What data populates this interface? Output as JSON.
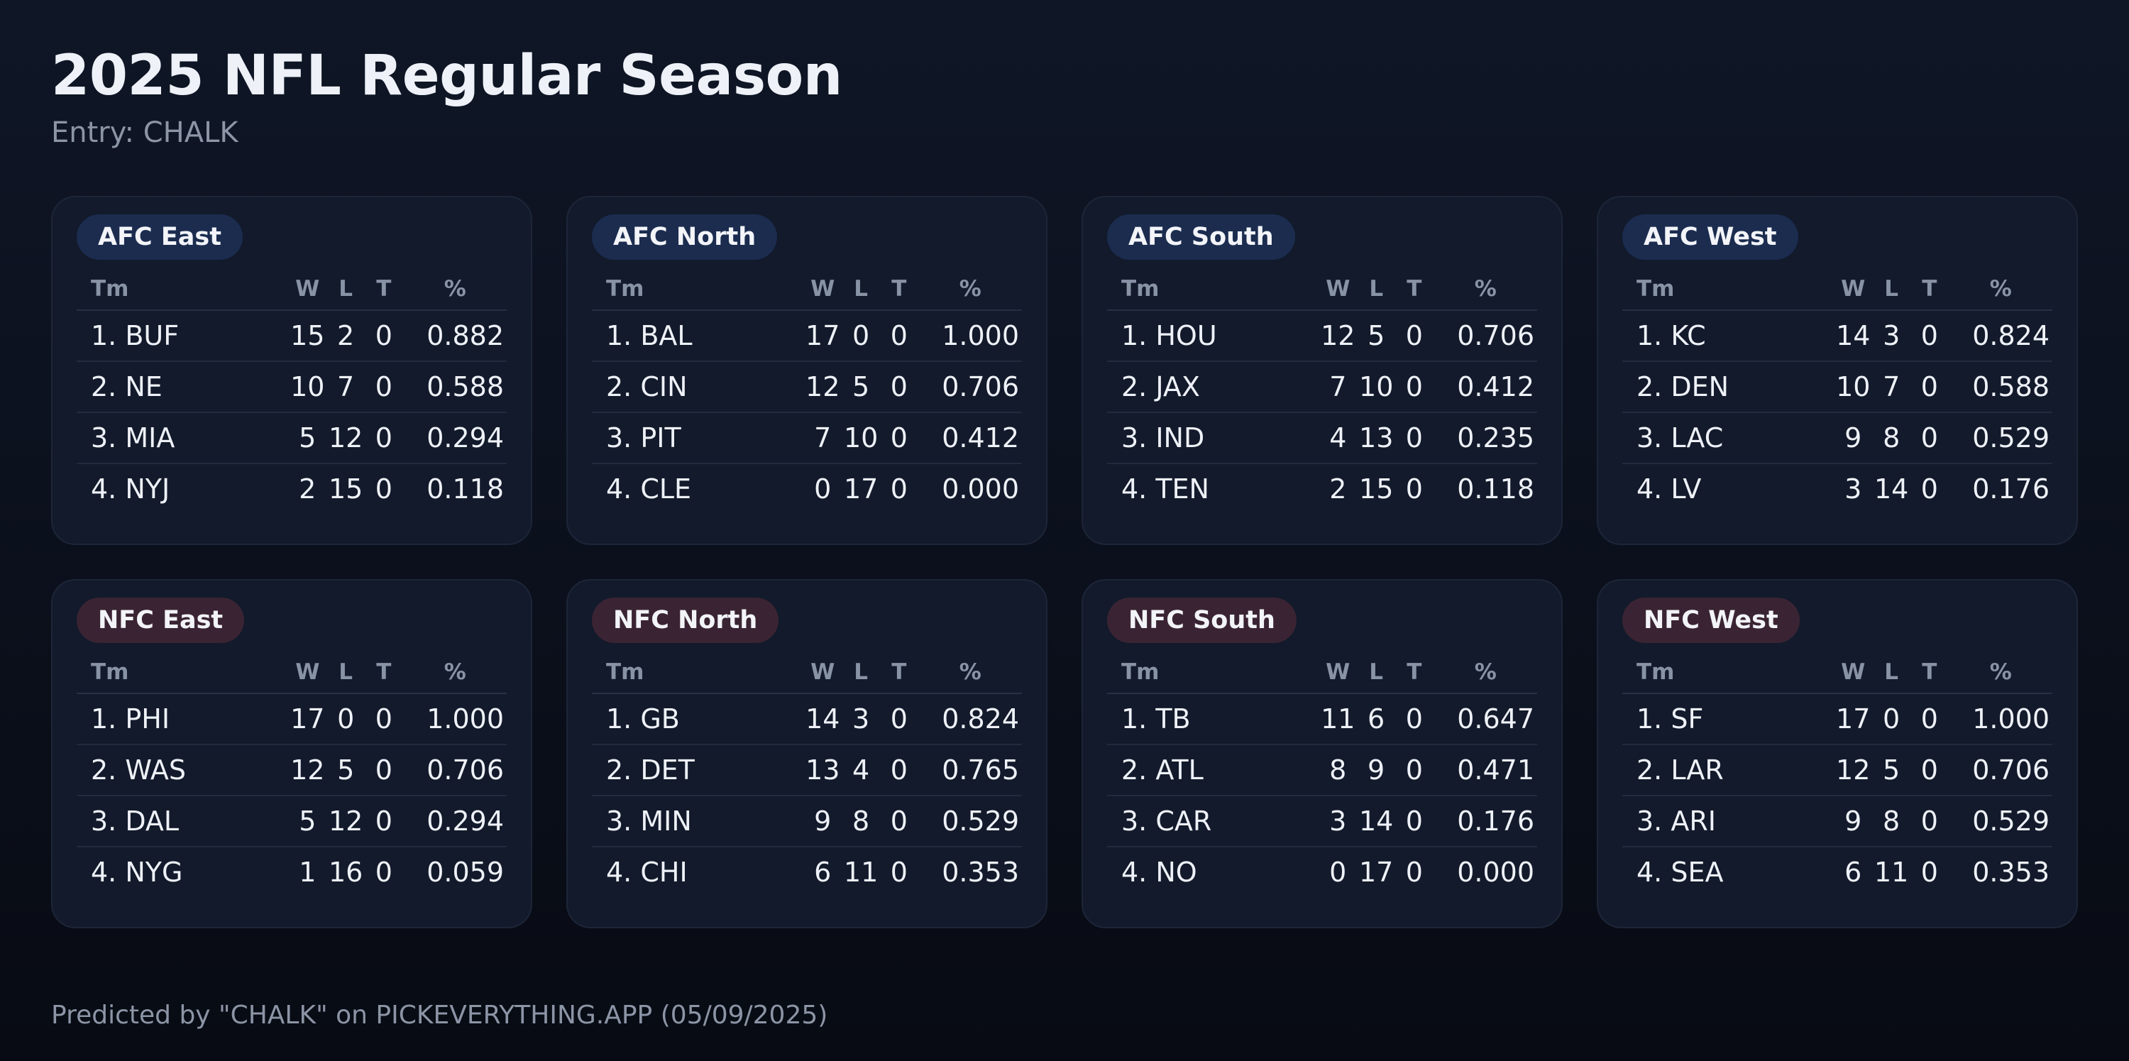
{
  "title": "2025 NFL Regular Season",
  "subtitle": "Entry: CHALK",
  "columns": {
    "team": "Tm",
    "w": "W",
    "l": "L",
    "t": "T",
    "pct": "%"
  },
  "colors": {
    "afc_pill": "#1b2c4f",
    "nfc_pill": "#3a2433",
    "card": "#121a2b",
    "background": "#0b101c"
  },
  "divisions": [
    {
      "name": "AFC East",
      "conference": "afc",
      "teams": [
        {
          "team": "1. BUF",
          "w": "15",
          "l": "2",
          "t": "0",
          "pct": "0.882"
        },
        {
          "team": "2. NE",
          "w": "10",
          "l": "7",
          "t": "0",
          "pct": "0.588"
        },
        {
          "team": "3. MIA",
          "w": "5",
          "l": "12",
          "t": "0",
          "pct": "0.294"
        },
        {
          "team": "4. NYJ",
          "w": "2",
          "l": "15",
          "t": "0",
          "pct": "0.118"
        }
      ]
    },
    {
      "name": "AFC North",
      "conference": "afc",
      "teams": [
        {
          "team": "1. BAL",
          "w": "17",
          "l": "0",
          "t": "0",
          "pct": "1.000"
        },
        {
          "team": "2. CIN",
          "w": "12",
          "l": "5",
          "t": "0",
          "pct": "0.706"
        },
        {
          "team": "3. PIT",
          "w": "7",
          "l": "10",
          "t": "0",
          "pct": "0.412"
        },
        {
          "team": "4. CLE",
          "w": "0",
          "l": "17",
          "t": "0",
          "pct": "0.000"
        }
      ]
    },
    {
      "name": "AFC South",
      "conference": "afc",
      "teams": [
        {
          "team": "1. HOU",
          "w": "12",
          "l": "5",
          "t": "0",
          "pct": "0.706"
        },
        {
          "team": "2. JAX",
          "w": "7",
          "l": "10",
          "t": "0",
          "pct": "0.412"
        },
        {
          "team": "3. IND",
          "w": "4",
          "l": "13",
          "t": "0",
          "pct": "0.235"
        },
        {
          "team": "4. TEN",
          "w": "2",
          "l": "15",
          "t": "0",
          "pct": "0.118"
        }
      ]
    },
    {
      "name": "AFC West",
      "conference": "afc",
      "teams": [
        {
          "team": "1. KC",
          "w": "14",
          "l": "3",
          "t": "0",
          "pct": "0.824"
        },
        {
          "team": "2. DEN",
          "w": "10",
          "l": "7",
          "t": "0",
          "pct": "0.588"
        },
        {
          "team": "3. LAC",
          "w": "9",
          "l": "8",
          "t": "0",
          "pct": "0.529"
        },
        {
          "team": "4. LV",
          "w": "3",
          "l": "14",
          "t": "0",
          "pct": "0.176"
        }
      ]
    },
    {
      "name": "NFC East",
      "conference": "nfc",
      "teams": [
        {
          "team": "1. PHI",
          "w": "17",
          "l": "0",
          "t": "0",
          "pct": "1.000"
        },
        {
          "team": "2. WAS",
          "w": "12",
          "l": "5",
          "t": "0",
          "pct": "0.706"
        },
        {
          "team": "3. DAL",
          "w": "5",
          "l": "12",
          "t": "0",
          "pct": "0.294"
        },
        {
          "team": "4. NYG",
          "w": "1",
          "l": "16",
          "t": "0",
          "pct": "0.059"
        }
      ]
    },
    {
      "name": "NFC North",
      "conference": "nfc",
      "teams": [
        {
          "team": "1. GB",
          "w": "14",
          "l": "3",
          "t": "0",
          "pct": "0.824"
        },
        {
          "team": "2. DET",
          "w": "13",
          "l": "4",
          "t": "0",
          "pct": "0.765"
        },
        {
          "team": "3. MIN",
          "w": "9",
          "l": "8",
          "t": "0",
          "pct": "0.529"
        },
        {
          "team": "4. CHI",
          "w": "6",
          "l": "11",
          "t": "0",
          "pct": "0.353"
        }
      ]
    },
    {
      "name": "NFC South",
      "conference": "nfc",
      "teams": [
        {
          "team": "1. TB",
          "w": "11",
          "l": "6",
          "t": "0",
          "pct": "0.647"
        },
        {
          "team": "2. ATL",
          "w": "8",
          "l": "9",
          "t": "0",
          "pct": "0.471"
        },
        {
          "team": "3. CAR",
          "w": "3",
          "l": "14",
          "t": "0",
          "pct": "0.176"
        },
        {
          "team": "4. NO",
          "w": "0",
          "l": "17",
          "t": "0",
          "pct": "0.000"
        }
      ]
    },
    {
      "name": "NFC West",
      "conference": "nfc",
      "teams": [
        {
          "team": "1. SF",
          "w": "17",
          "l": "0",
          "t": "0",
          "pct": "1.000"
        },
        {
          "team": "2. LAR",
          "w": "12",
          "l": "5",
          "t": "0",
          "pct": "0.706"
        },
        {
          "team": "3. ARI",
          "w": "9",
          "l": "8",
          "t": "0",
          "pct": "0.529"
        },
        {
          "team": "4. SEA",
          "w": "6",
          "l": "11",
          "t": "0",
          "pct": "0.353"
        }
      ]
    }
  ],
  "footer": "Predicted by \"CHALK\" on PICKEVERYTHING.APP (05/09/2025)"
}
